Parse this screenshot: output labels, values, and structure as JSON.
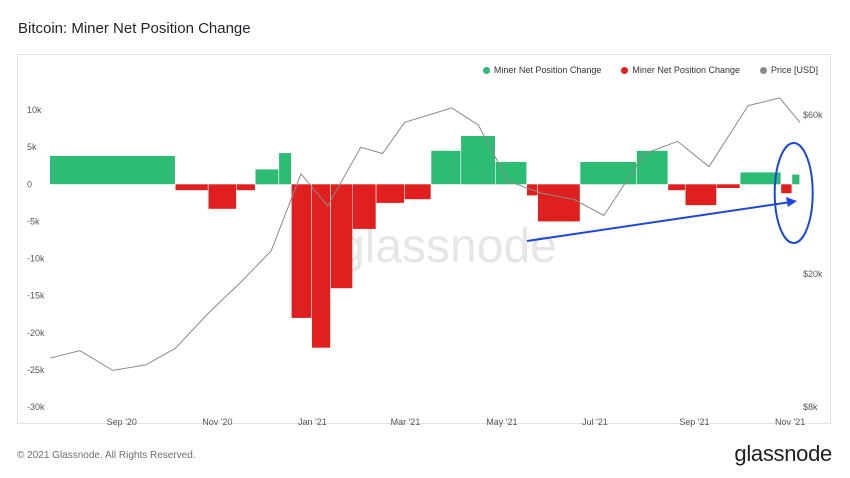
{
  "title": "Bitcoin: Miner Net Position Change",
  "footer": "© 2021 Glassnode. All Rights Reserved.",
  "brand": "glassnode",
  "watermark": "glassnode",
  "colors": {
    "positive": "#2dbc74",
    "negative": "#e01f1f",
    "price": "#8a8a8a",
    "annotation": "#1f47d6"
  },
  "legend": [
    {
      "label": "Miner Net Position Change",
      "color": "#2dbc74"
    },
    {
      "label": "Miner Net Position Change",
      "color": "#e01f1f"
    },
    {
      "label": "Price [USD]",
      "color": "#8a8a8a"
    }
  ],
  "chart_data": {
    "type": "bar",
    "title": "Bitcoin: Miner Net Position Change",
    "x_ticks": [
      "Sep '20",
      "Nov '20",
      "Jan '21",
      "Mar '21",
      "May '21",
      "Jul '21",
      "Sep '21",
      "Nov '21"
    ],
    "y_left": {
      "ticks": [
        "10k",
        "5k",
        "0",
        "-5k",
        "-10k",
        "-15k",
        "-20k",
        "-25k",
        "-30k"
      ],
      "range": [
        -30000,
        10000
      ]
    },
    "y_right": {
      "ticks": [
        "$60k",
        "$20k",
        "$8k"
      ],
      "scale": "log"
    },
    "date_range": [
      "2020-08-01",
      "2021-11-22"
    ],
    "series": [
      {
        "name": "Miner Net Position Change",
        "unit": "BTC",
        "segments": [
          {
            "start": "2020-08-01",
            "end": "2020-10-20",
            "value": 3800
          },
          {
            "start": "2020-10-20",
            "end": "2020-11-10",
            "value": -800
          },
          {
            "start": "2020-11-10",
            "end": "2020-11-28",
            "value": -3300
          },
          {
            "start": "2020-11-28",
            "end": "2020-12-10",
            "value": -800
          },
          {
            "start": "2020-12-10",
            "end": "2020-12-25",
            "value": 2000
          },
          {
            "start": "2020-12-25",
            "end": "2021-01-02",
            "value": 4200
          },
          {
            "start": "2021-01-02",
            "end": "2021-01-15",
            "value": -18000
          },
          {
            "start": "2021-01-15",
            "end": "2021-01-27",
            "value": -22000
          },
          {
            "start": "2021-01-27",
            "end": "2021-02-10",
            "value": -14000
          },
          {
            "start": "2021-02-10",
            "end": "2021-02-25",
            "value": -6000
          },
          {
            "start": "2021-02-25",
            "end": "2021-03-15",
            "value": -2500
          },
          {
            "start": "2021-03-15",
            "end": "2021-04-01",
            "value": -2000
          },
          {
            "start": "2021-04-01",
            "end": "2021-04-20",
            "value": 4500
          },
          {
            "start": "2021-04-20",
            "end": "2021-05-12",
            "value": 6500
          },
          {
            "start": "2021-05-12",
            "end": "2021-06-01",
            "value": 3000
          },
          {
            "start": "2021-06-01",
            "end": "2021-06-08",
            "value": -1500
          },
          {
            "start": "2021-06-08",
            "end": "2021-07-05",
            "value": -5000
          },
          {
            "start": "2021-07-05",
            "end": "2021-08-10",
            "value": 3000
          },
          {
            "start": "2021-08-10",
            "end": "2021-08-30",
            "value": 4500
          },
          {
            "start": "2021-08-30",
            "end": "2021-09-10",
            "value": -800
          },
          {
            "start": "2021-09-10",
            "end": "2021-09-30",
            "value": -2800
          },
          {
            "start": "2021-09-30",
            "end": "2021-10-15",
            "value": -500
          },
          {
            "start": "2021-10-15",
            "end": "2021-11-10",
            "value": 1600
          },
          {
            "start": "2021-11-10",
            "end": "2021-11-17",
            "value": -1200
          },
          {
            "start": "2021-11-17",
            "end": "2021-11-22",
            "value": 1300
          }
        ]
      },
      {
        "name": "Price [USD]",
        "unit": "USD",
        "points": [
          {
            "date": "2020-08-01",
            "value": 11200
          },
          {
            "date": "2020-08-20",
            "value": 11800
          },
          {
            "date": "2020-09-10",
            "value": 10300
          },
          {
            "date": "2020-10-01",
            "value": 10700
          },
          {
            "date": "2020-10-20",
            "value": 12000
          },
          {
            "date": "2020-11-10",
            "value": 15300
          },
          {
            "date": "2020-12-01",
            "value": 19000
          },
          {
            "date": "2020-12-20",
            "value": 23500
          },
          {
            "date": "2021-01-08",
            "value": 40000
          },
          {
            "date": "2021-01-25",
            "value": 32000
          },
          {
            "date": "2021-02-15",
            "value": 48000
          },
          {
            "date": "2021-03-01",
            "value": 46000
          },
          {
            "date": "2021-03-15",
            "value": 57000
          },
          {
            "date": "2021-04-14",
            "value": 63000
          },
          {
            "date": "2021-05-01",
            "value": 56000
          },
          {
            "date": "2021-05-20",
            "value": 38000
          },
          {
            "date": "2021-06-10",
            "value": 35000
          },
          {
            "date": "2021-07-01",
            "value": 33500
          },
          {
            "date": "2021-07-20",
            "value": 30000
          },
          {
            "date": "2021-08-15",
            "value": 46000
          },
          {
            "date": "2021-09-05",
            "value": 50000
          },
          {
            "date": "2021-09-25",
            "value": 42000
          },
          {
            "date": "2021-10-20",
            "value": 64000
          },
          {
            "date": "2021-11-09",
            "value": 67500
          },
          {
            "date": "2021-11-22",
            "value": 57000
          }
        ]
      }
    ],
    "annotations": [
      {
        "type": "arrow",
        "from_date": "2021-06-01",
        "to_date": "2021-11-20",
        "note": "blue arrow toward latest readings"
      },
      {
        "type": "ellipse",
        "around_date": "2021-11-18",
        "note": "blue circle around latest readings"
      }
    ]
  }
}
